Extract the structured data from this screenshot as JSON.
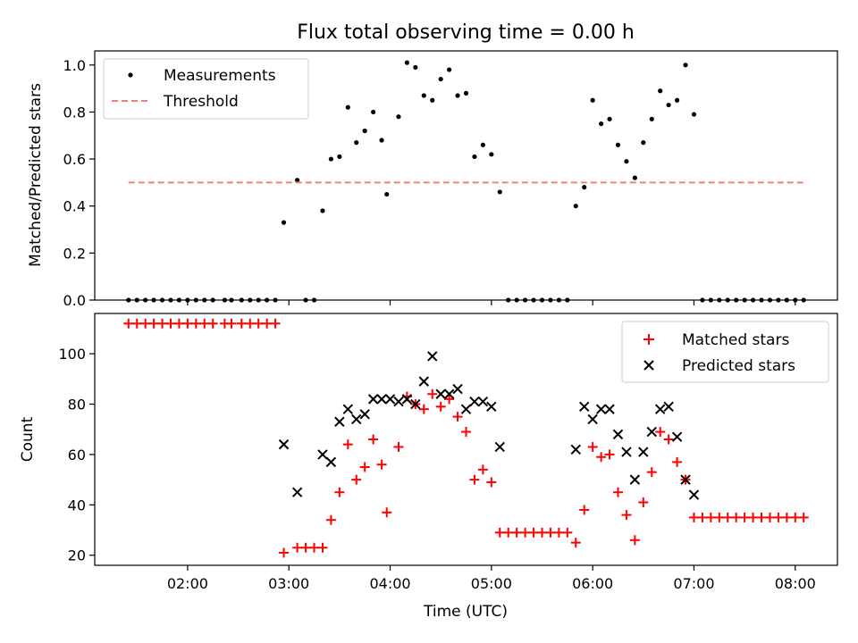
{
  "chart_data": [
    {
      "type": "scatter",
      "title": "Flux total observing time = 0.00 h",
      "ylabel": "Matched/Predicted stars",
      "xlim": [
        "01:05",
        "08:25"
      ],
      "ylim": [
        0,
        1.06
      ],
      "yticks": [
        "0.0",
        "0.2",
        "0.4",
        "0.6",
        "0.8",
        "1.0"
      ],
      "xticks": [
        "02:00",
        "03:00",
        "04:00",
        "05:00",
        "06:00",
        "07:00",
        "08:00"
      ],
      "x_tick_labels_shown": false,
      "legend": "top-left",
      "grid": false,
      "series": [
        {
          "name": "Measurements",
          "marker": "dot",
          "color": "#000000",
          "points": [
            [
              "01:25",
              0
            ],
            [
              "01:30",
              0
            ],
            [
              "01:35",
              0
            ],
            [
              "01:40",
              0
            ],
            [
              "01:45",
              0
            ],
            [
              "01:50",
              0
            ],
            [
              "01:55",
              0
            ],
            [
              "02:00",
              0
            ],
            [
              "02:05",
              0
            ],
            [
              "02:10",
              0
            ],
            [
              "02:15",
              0
            ],
            [
              "02:22",
              0
            ],
            [
              "02:26",
              0
            ],
            [
              "02:32",
              0
            ],
            [
              "02:37",
              0
            ],
            [
              "02:42",
              0
            ],
            [
              "02:47",
              0
            ],
            [
              "02:52",
              0
            ],
            [
              "02:57",
              0.33
            ],
            [
              "03:05",
              0.51
            ],
            [
              "03:10",
              0
            ],
            [
              "03:15",
              0
            ],
            [
              "03:20",
              0.38
            ],
            [
              "03:25",
              0.6
            ],
            [
              "03:30",
              0.61
            ],
            [
              "03:35",
              0.82
            ],
            [
              "03:40",
              0.67
            ],
            [
              "03:45",
              0.72
            ],
            [
              "03:50",
              0.8
            ],
            [
              "03:55",
              0.68
            ],
            [
              "03:58",
              0.45
            ],
            [
              "04:05",
              0.78
            ],
            [
              "04:10",
              1.01
            ],
            [
              "04:15",
              0.99
            ],
            [
              "04:20",
              0.87
            ],
            [
              "04:25",
              0.85
            ],
            [
              "04:30",
              0.94
            ],
            [
              "04:35",
              0.98
            ],
            [
              "04:40",
              0.87
            ],
            [
              "04:45",
              0.88
            ],
            [
              "04:50",
              0.61
            ],
            [
              "04:55",
              0.66
            ],
            [
              "05:00",
              0.62
            ],
            [
              "05:05",
              0.46
            ],
            [
              "05:10",
              0
            ],
            [
              "05:15",
              0
            ],
            [
              "05:20",
              0
            ],
            [
              "05:25",
              0
            ],
            [
              "05:30",
              0
            ],
            [
              "05:35",
              0
            ],
            [
              "05:40",
              0
            ],
            [
              "05:45",
              0
            ],
            [
              "05:50",
              0.4
            ],
            [
              "05:55",
              0.48
            ],
            [
              "06:00",
              0.85
            ],
            [
              "06:05",
              0.75
            ],
            [
              "06:10",
              0.77
            ],
            [
              "06:15",
              0.66
            ],
            [
              "06:20",
              0.59
            ],
            [
              "06:25",
              0.52
            ],
            [
              "06:30",
              0.67
            ],
            [
              "06:35",
              0.77
            ],
            [
              "06:40",
              0.89
            ],
            [
              "06:45",
              0.83
            ],
            [
              "06:50",
              0.85
            ],
            [
              "06:55",
              1.0
            ],
            [
              "07:00",
              0.79
            ],
            [
              "07:05",
              0
            ],
            [
              "07:10",
              0
            ],
            [
              "07:15",
              0
            ],
            [
              "07:20",
              0
            ],
            [
              "07:25",
              0
            ],
            [
              "07:30",
              0
            ],
            [
              "07:35",
              0
            ],
            [
              "07:40",
              0
            ],
            [
              "07:45",
              0
            ],
            [
              "07:50",
              0
            ],
            [
              "07:55",
              0
            ],
            [
              "08:00",
              0
            ],
            [
              "08:05",
              0
            ]
          ]
        },
        {
          "name": "Threshold",
          "marker": "dashed-line",
          "color": "#f08080",
          "points": [
            [
              "01:25",
              0.5
            ],
            [
              "08:05",
              0.5
            ]
          ]
        }
      ]
    },
    {
      "type": "scatter",
      "ylabel": "Count",
      "xlabel": "Time (UTC)",
      "xlim": [
        "01:05",
        "08:25"
      ],
      "ylim": [
        16,
        116
      ],
      "yticks": [
        "20",
        "40",
        "60",
        "80",
        "100"
      ],
      "xticks": [
        "02:00",
        "03:00",
        "04:00",
        "05:00",
        "06:00",
        "07:00",
        "08:00"
      ],
      "legend": "top-right",
      "grid": false,
      "series": [
        {
          "name": "Matched stars",
          "marker": "plus",
          "color": "#ff0000",
          "points": [
            [
              "01:25",
              112
            ],
            [
              "01:30",
              112
            ],
            [
              "01:35",
              112
            ],
            [
              "01:40",
              112
            ],
            [
              "01:45",
              112
            ],
            [
              "01:50",
              112
            ],
            [
              "01:55",
              112
            ],
            [
              "02:00",
              112
            ],
            [
              "02:05",
              112
            ],
            [
              "02:10",
              112
            ],
            [
              "02:15",
              112
            ],
            [
              "02:22",
              112
            ],
            [
              "02:26",
              112
            ],
            [
              "02:32",
              112
            ],
            [
              "02:37",
              112
            ],
            [
              "02:42",
              112
            ],
            [
              "02:47",
              112
            ],
            [
              "02:52",
              112
            ],
            [
              "02:57",
              21
            ],
            [
              "03:05",
              23
            ],
            [
              "03:10",
              23
            ],
            [
              "03:15",
              23
            ],
            [
              "03:20",
              23
            ],
            [
              "03:25",
              34
            ],
            [
              "03:30",
              45
            ],
            [
              "03:35",
              64
            ],
            [
              "03:40",
              50
            ],
            [
              "03:45",
              55
            ],
            [
              "03:50",
              66
            ],
            [
              "03:55",
              56
            ],
            [
              "03:58",
              37
            ],
            [
              "04:05",
              63
            ],
            [
              "04:10",
              83
            ],
            [
              "04:15",
              80
            ],
            [
              "04:20",
              78
            ],
            [
              "04:25",
              84
            ],
            [
              "04:30",
              79
            ],
            [
              "04:35",
              82
            ],
            [
              "04:40",
              75
            ],
            [
              "04:45",
              69
            ],
            [
              "04:50",
              50
            ],
            [
              "04:55",
              54
            ],
            [
              "05:00",
              49
            ],
            [
              "05:05",
              29
            ],
            [
              "05:10",
              29
            ],
            [
              "05:15",
              29
            ],
            [
              "05:20",
              29
            ],
            [
              "05:25",
              29
            ],
            [
              "05:30",
              29
            ],
            [
              "05:35",
              29
            ],
            [
              "05:40",
              29
            ],
            [
              "05:45",
              29
            ],
            [
              "05:50",
              25
            ],
            [
              "05:55",
              38
            ],
            [
              "06:00",
              63
            ],
            [
              "06:05",
              59
            ],
            [
              "06:10",
              60
            ],
            [
              "06:15",
              45
            ],
            [
              "06:20",
              36
            ],
            [
              "06:25",
              26
            ],
            [
              "06:30",
              41
            ],
            [
              "06:35",
              53
            ],
            [
              "06:40",
              69
            ],
            [
              "06:45",
              66
            ],
            [
              "06:50",
              57
            ],
            [
              "06:55",
              50
            ],
            [
              "07:00",
              35
            ],
            [
              "07:05",
              35
            ],
            [
              "07:10",
              35
            ],
            [
              "07:15",
              35
            ],
            [
              "07:20",
              35
            ],
            [
              "07:25",
              35
            ],
            [
              "07:30",
              35
            ],
            [
              "07:35",
              35
            ],
            [
              "07:40",
              35
            ],
            [
              "07:45",
              35
            ],
            [
              "07:50",
              35
            ],
            [
              "07:55",
              35
            ],
            [
              "08:00",
              35
            ],
            [
              "08:05",
              35
            ]
          ]
        },
        {
          "name": "Predicted stars",
          "marker": "x",
          "color": "#000000",
          "points": [
            [
              "02:57",
              64
            ],
            [
              "03:05",
              45
            ],
            [
              "03:20",
              60
            ],
            [
              "03:25",
              57
            ],
            [
              "03:30",
              73
            ],
            [
              "03:35",
              78
            ],
            [
              "03:40",
              74
            ],
            [
              "03:45",
              76
            ],
            [
              "03:50",
              82
            ],
            [
              "03:55",
              82
            ],
            [
              "04:00",
              82
            ],
            [
              "04:05",
              81
            ],
            [
              "04:10",
              82
            ],
            [
              "04:15",
              80
            ],
            [
              "04:20",
              89
            ],
            [
              "04:25",
              99
            ],
            [
              "04:30",
              84
            ],
            [
              "04:35",
              84
            ],
            [
              "04:40",
              86
            ],
            [
              "04:45",
              78
            ],
            [
              "04:50",
              81
            ],
            [
              "04:55",
              81
            ],
            [
              "05:00",
              79
            ],
            [
              "05:05",
              63
            ],
            [
              "05:50",
              62
            ],
            [
              "05:55",
              79
            ],
            [
              "06:00",
              74
            ],
            [
              "06:05",
              78
            ],
            [
              "06:10",
              78
            ],
            [
              "06:15",
              68
            ],
            [
              "06:20",
              61
            ],
            [
              "06:25",
              50
            ],
            [
              "06:30",
              61
            ],
            [
              "06:35",
              69
            ],
            [
              "06:40",
              78
            ],
            [
              "06:45",
              79
            ],
            [
              "06:50",
              67
            ],
            [
              "06:55",
              50
            ],
            [
              "07:00",
              44
            ]
          ]
        }
      ]
    }
  ]
}
